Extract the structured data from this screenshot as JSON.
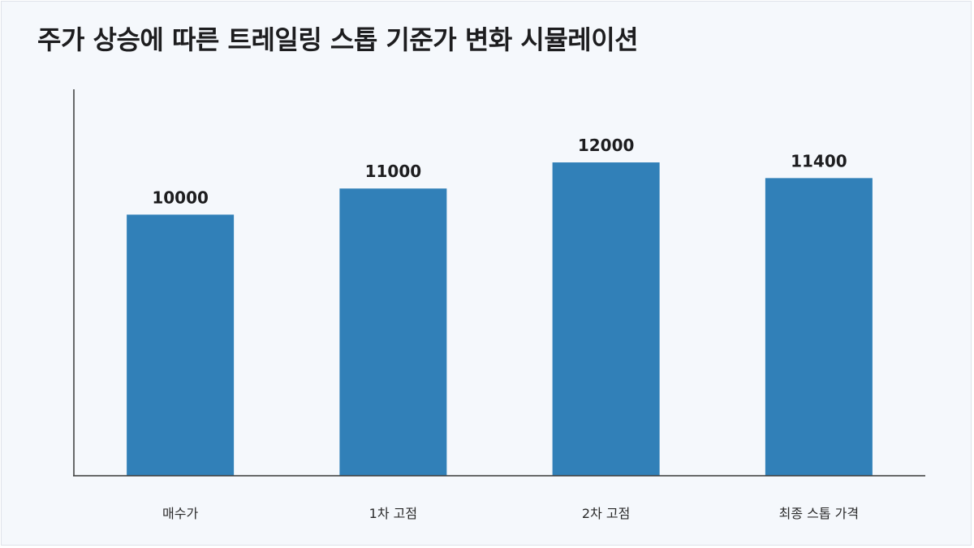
{
  "title": "주가 상승에 따른 트레일링 스톱 기준가 변화 시뮬레이션",
  "chart_data": {
    "type": "bar",
    "title": "주가 상승에 따른 트레일링 스톱 기준가 변화 시뮬레이션",
    "categories": [
      "매수가",
      "1차 고점",
      "2차 고점",
      "최종 스톱 가격"
    ],
    "values": [
      10000,
      11000,
      12000,
      11400
    ],
    "ylim": [
      0,
      14800
    ],
    "xlabel": "",
    "ylabel": "",
    "grid": false,
    "legend": "none",
    "bar_color": "#3180b8",
    "axis_color": "#3a3a3a"
  }
}
